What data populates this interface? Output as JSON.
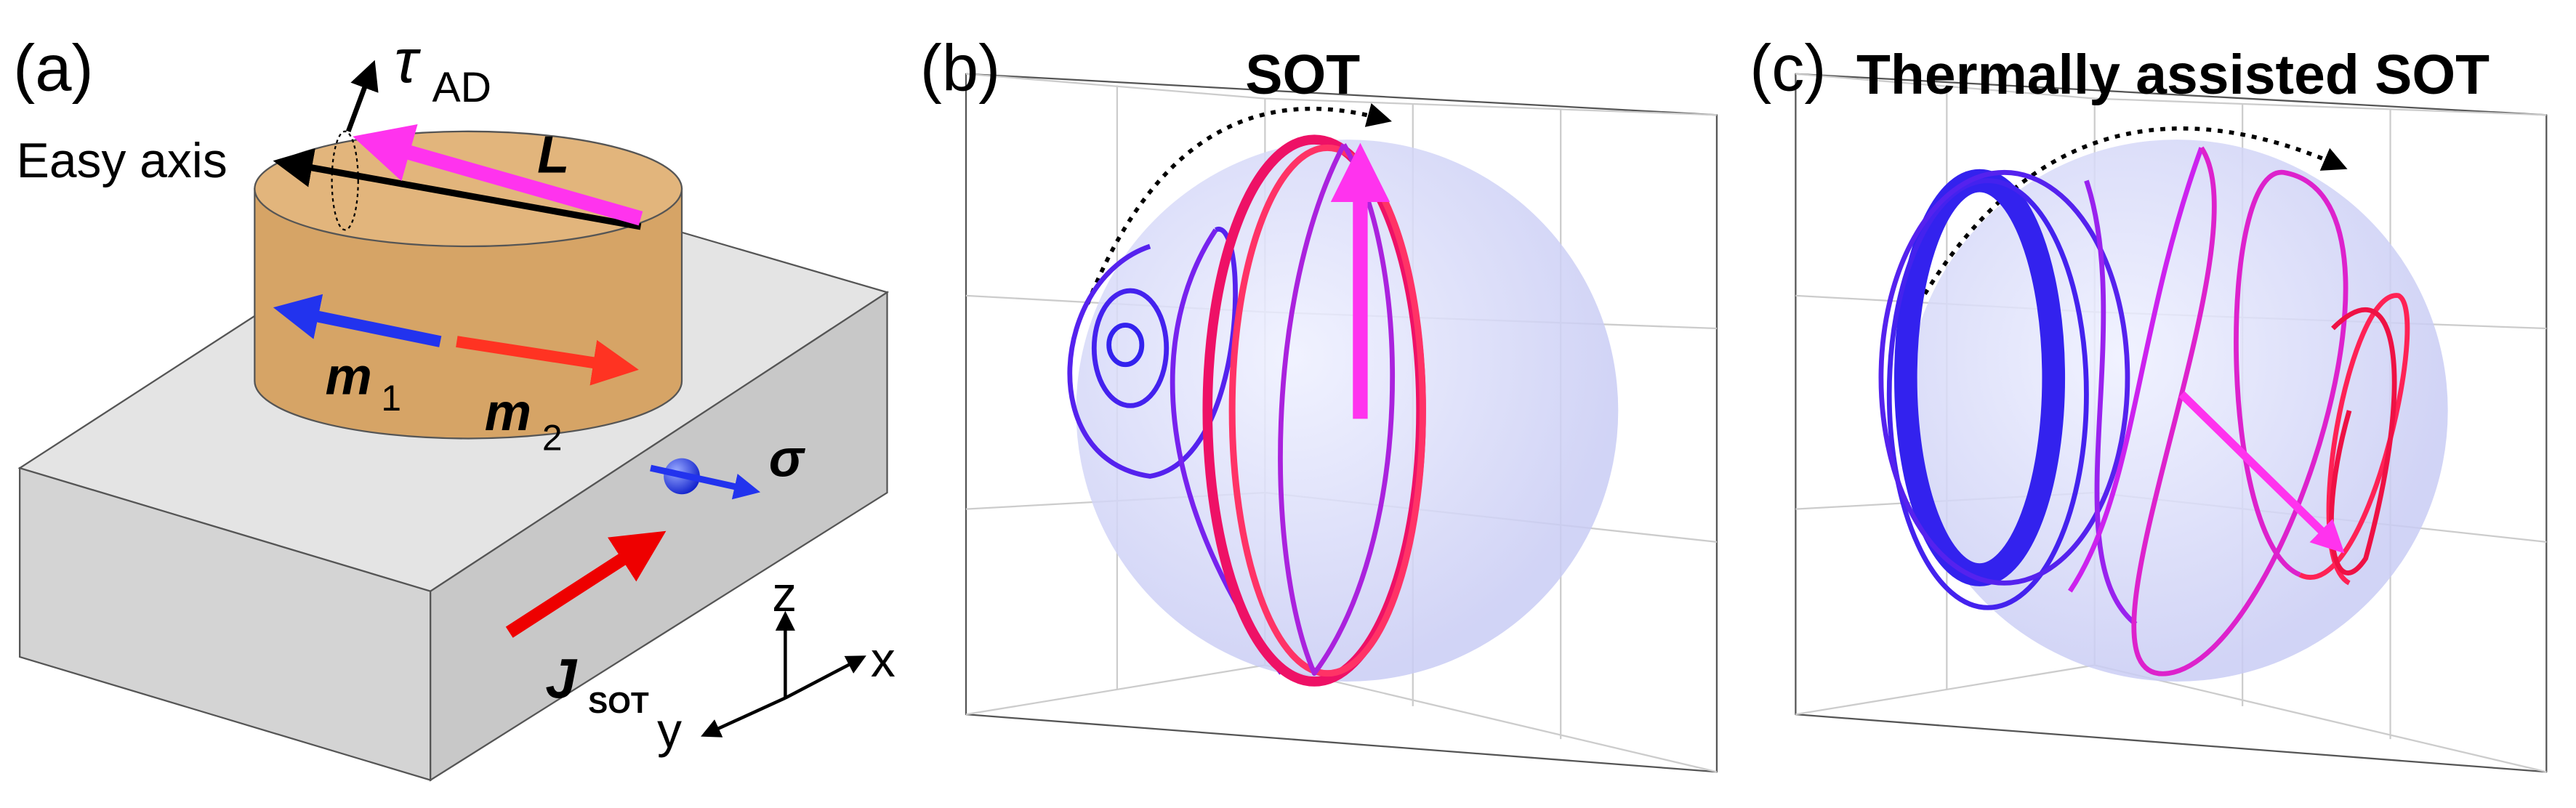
{
  "panels": [
    {
      "label": "(a)",
      "tau": "τ",
      "tau_sub": "AD",
      "easy_axis": "Easy axis",
      "L": "L",
      "m1": "m",
      "m1_sub": "1",
      "m2": "m",
      "m2_sub": "2",
      "sigma": "σ",
      "J": "J",
      "J_sub": "SOT",
      "axes": {
        "z": "z",
        "y": "y",
        "x": "x"
      }
    },
    {
      "label": "(b)",
      "title": "SOT"
    },
    {
      "label": "(c)",
      "title": "Thermally assisted SOT"
    }
  ]
}
